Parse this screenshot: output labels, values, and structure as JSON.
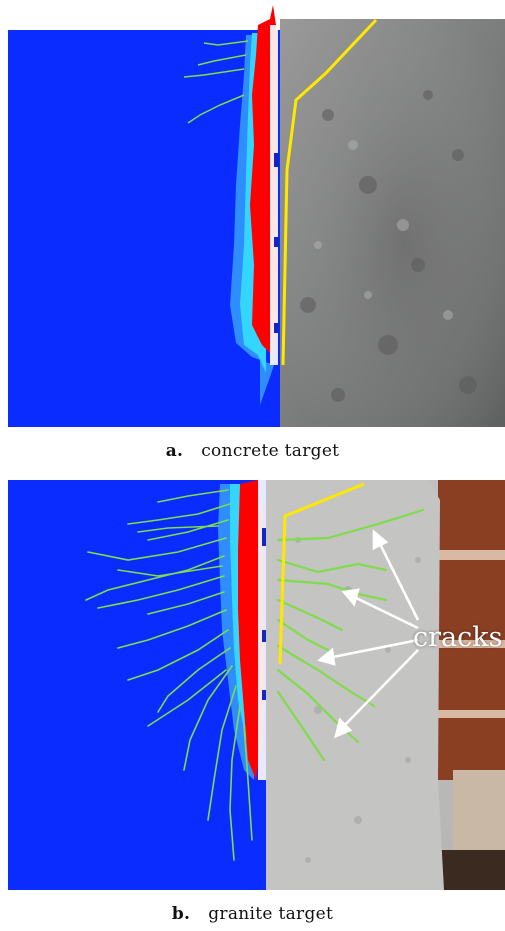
{
  "figure": {
    "panels": [
      {
        "id": "a",
        "letter": "a.",
        "caption": "concrete target"
      },
      {
        "id": "b",
        "letter": "b.",
        "caption": "granite target"
      }
    ],
    "annotation": {
      "label": "cracks"
    },
    "colors": {
      "simulation_background": "#0a2cff",
      "damage_zone": "#ff0000",
      "damage_mid": "#33d6ff",
      "damage_low": "#2f8dff",
      "crack_green": "#7fdc4a",
      "profile_line": "#ffe800",
      "concrete_photo": "#8e8e8e",
      "granite_photo": "#c8c8c6"
    }
  }
}
